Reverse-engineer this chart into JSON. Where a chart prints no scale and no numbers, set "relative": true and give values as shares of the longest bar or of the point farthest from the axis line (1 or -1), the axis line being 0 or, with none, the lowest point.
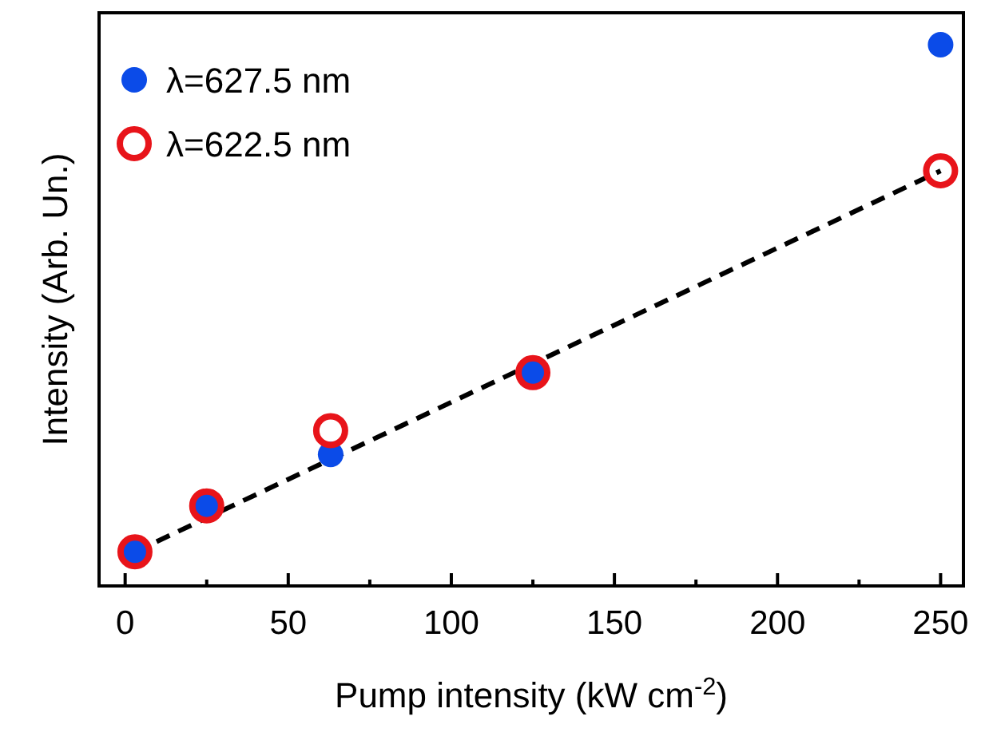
{
  "chart_data": {
    "type": "scatter",
    "relative": true,
    "xlabel": "Pump intensity (kW cm$^{-2}$)",
    "ylabel": "Intensity (Arb. Un.)",
    "xlim": [
      -8,
      257
    ],
    "xticks": [
      0,
      50,
      100,
      150,
      200,
      250
    ],
    "tick_labels": "x",
    "legend": "top left",
    "x": [
      3,
      25,
      63,
      125,
      250
    ],
    "series": [
      {
        "name": "λ=627.5 nm",
        "color": "#0b4be8",
        "marker": "circle",
        "values": [
          0.063,
          0.148,
          0.243,
          0.394,
          1
        ]
      },
      {
        "name": "λ=622.5 nm",
        "color": "#e8141a",
        "marker": "circle",
        "values": [
          0.063,
          0.148,
          0.287,
          0.394,
          0.767
        ]
      },
      {
        "type": "line",
        "color": "#000000",
        "line_style": "dashed",
        "x": [
          3,
          250
        ],
        "values": [
          0.063,
          0.767
        ]
      }
    ]
  }
}
